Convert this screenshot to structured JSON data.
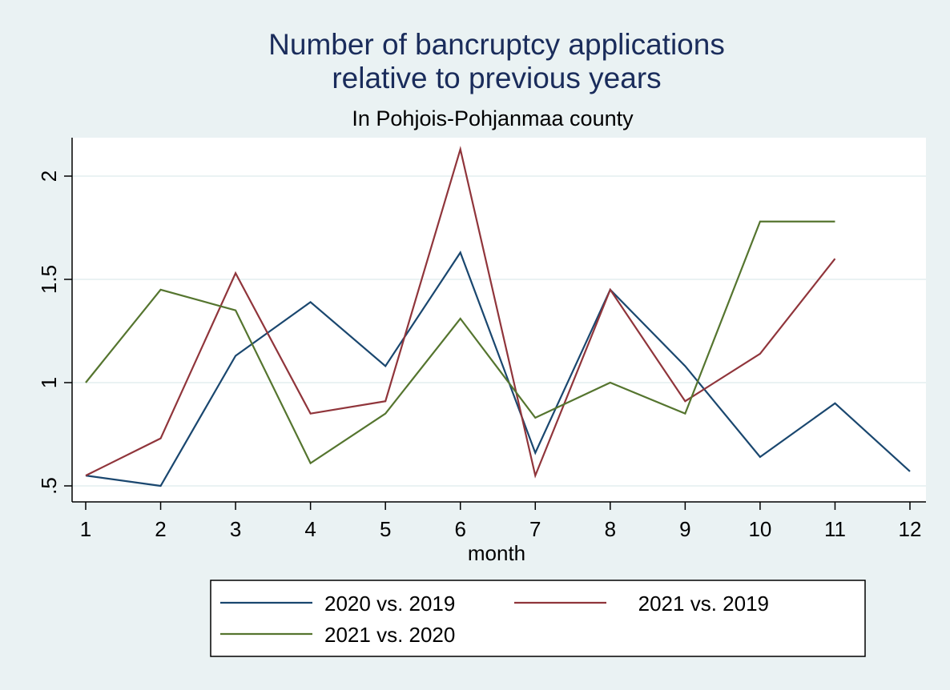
{
  "chart_data": {
    "type": "line",
    "title": [
      "Number of bancruptcy applications",
      "relative to previous years"
    ],
    "subtitle": "In Pohjois-Pohjanmaa county",
    "xlabel": "month",
    "ylabel": "",
    "x": [
      1,
      2,
      3,
      4,
      5,
      6,
      7,
      8,
      9,
      10,
      11,
      12
    ],
    "xticks": [
      "1",
      "2",
      "3",
      "4",
      "5",
      "6",
      "7",
      "8",
      "9",
      "10",
      "11",
      "12"
    ],
    "yticks": [
      {
        "v": 0.5,
        "label": ".5"
      },
      {
        "v": 1,
        "label": "1"
      },
      {
        "v": 1.5,
        "label": "1.5"
      },
      {
        "v": 2,
        "label": "2"
      }
    ],
    "xlim": [
      0.85,
      12.2
    ],
    "ylim": [
      0.45,
      2.2
    ],
    "grid": true,
    "legend_position": "bottom",
    "series": [
      {
        "name": "2020 vs. 2019",
        "color": "#1a476f",
        "values": [
          0.55,
          0.5,
          1.13,
          1.39,
          1.08,
          1.63,
          0.66,
          1.45,
          1.08,
          0.64,
          0.9,
          0.57
        ]
      },
      {
        "name": "2021 vs. 2019",
        "color": "#90353b",
        "values": [
          0.55,
          0.73,
          1.53,
          0.85,
          0.91,
          2.13,
          0.55,
          1.45,
          0.91,
          1.14,
          1.6,
          null
        ]
      },
      {
        "name": "2021 vs. 2020",
        "color": "#55752f",
        "values": [
          1.0,
          1.45,
          1.35,
          0.61,
          0.85,
          1.31,
          0.83,
          1.0,
          0.85,
          1.78,
          1.78,
          null
        ]
      }
    ]
  }
}
